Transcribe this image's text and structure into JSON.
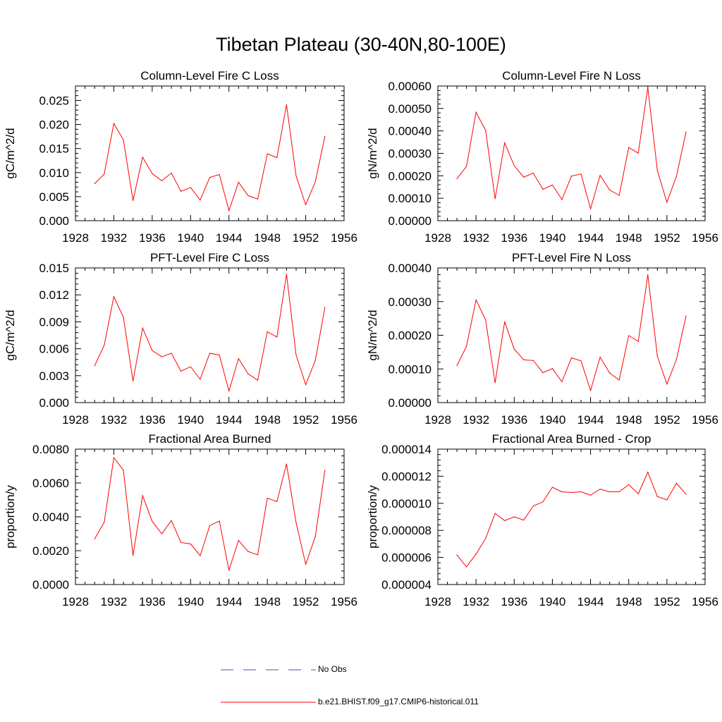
{
  "page_title": "Tibetan Plateau (30-40N,80-100E)",
  "legend": {
    "items": [
      {
        "label": "No Obs",
        "color": "#4f4fb0",
        "style": "dashed"
      },
      {
        "label": "b.e21.BHIST.f09_g17.CMIP6-historical.011",
        "color": "#ff0000",
        "style": "solid"
      }
    ]
  },
  "chart_data": [
    {
      "type": "line",
      "title": "Column-Level Fire C Loss",
      "ylabel": "gC/m^2/d",
      "xlabel": "",
      "xlim": [
        1928,
        1956
      ],
      "xticks": [
        1928,
        1932,
        1936,
        1940,
        1944,
        1948,
        1952,
        1956
      ],
      "ylim": [
        0,
        0.028
      ],
      "yticks": [
        "0.000",
        "0.005",
        "0.010",
        "0.015",
        "0.020",
        "0.025"
      ],
      "x": [
        1930,
        1931,
        1932,
        1933,
        1934,
        1935,
        1936,
        1937,
        1938,
        1939,
        1940,
        1941,
        1942,
        1943,
        1944,
        1945,
        1946,
        1947,
        1948,
        1949,
        1950,
        1951,
        1952,
        1953,
        1954
      ],
      "series": [
        {
          "name": "b.e21.BHIST.f09_g17.CMIP6-historical.011",
          "color": "#ff0000",
          "values": [
            0.0077,
            0.0097,
            0.0202,
            0.0168,
            0.0042,
            0.0132,
            0.0098,
            0.0083,
            0.0099,
            0.0061,
            0.0069,
            0.0043,
            0.009,
            0.0096,
            0.0021,
            0.008,
            0.0052,
            0.0045,
            0.0139,
            0.0131,
            0.0241,
            0.0093,
            0.0033,
            0.0081,
            0.0175
          ]
        }
      ]
    },
    {
      "type": "line",
      "title": "Column-Level Fire N Loss",
      "ylabel": "gN/m^2/d",
      "xlabel": "",
      "xlim": [
        1928,
        1956
      ],
      "xticks": [
        1928,
        1932,
        1936,
        1940,
        1944,
        1948,
        1952,
        1956
      ],
      "ylim": [
        0,
        0.0006
      ],
      "yticks": [
        "0.00000",
        "0.00010",
        "0.00020",
        "0.00030",
        "0.00040",
        "0.00050",
        "0.00060"
      ],
      "x": [
        1930,
        1931,
        1932,
        1933,
        1934,
        1935,
        1936,
        1937,
        1938,
        1939,
        1940,
        1941,
        1942,
        1943,
        1944,
        1945,
        1946,
        1947,
        1948,
        1949,
        1950,
        1951,
        1952,
        1953,
        1954
      ],
      "series": [
        {
          "name": "b.e21.BHIST.f09_g17.CMIP6-historical.011",
          "color": "#ff0000",
          "values": [
            0.000187,
            0.000242,
            0.000483,
            0.000403,
            9.8e-05,
            0.000347,
            0.000245,
            0.000194,
            0.000212,
            0.00014,
            0.000159,
            9.4e-05,
            0.000199,
            0.000208,
            5.3e-05,
            0.000202,
            0.000137,
            0.000113,
            0.000326,
            0.000301,
            0.000594,
            0.000223,
            8.2e-05,
            0.000198,
            0.000395
          ]
        }
      ]
    },
    {
      "type": "line",
      "title": "PFT-Level Fire C Loss",
      "ylabel": "gC/m^2/d",
      "xlabel": "",
      "xlim": [
        1928,
        1956
      ],
      "xticks": [
        1928,
        1932,
        1936,
        1940,
        1944,
        1948,
        1952,
        1956
      ],
      "ylim": [
        0,
        0.015
      ],
      "yticks": [
        "0.000",
        "0.003",
        "0.006",
        "0.009",
        "0.012",
        "0.015"
      ],
      "x": [
        1930,
        1931,
        1932,
        1933,
        1934,
        1935,
        1936,
        1937,
        1938,
        1939,
        1940,
        1941,
        1942,
        1943,
        1944,
        1945,
        1946,
        1947,
        1948,
        1949,
        1950,
        1951,
        1952,
        1953,
        1954
      ],
      "series": [
        {
          "name": "b.e21.BHIST.f09_g17.CMIP6-historical.011",
          "color": "#ff0000",
          "values": [
            0.0041,
            0.0064,
            0.0118,
            0.0095,
            0.0024,
            0.0083,
            0.0058,
            0.0051,
            0.0055,
            0.0035,
            0.004,
            0.0026,
            0.0055,
            0.0053,
            0.0013,
            0.0049,
            0.0032,
            0.0025,
            0.0079,
            0.0073,
            0.0143,
            0.0053,
            0.002,
            0.0047,
            0.0106
          ]
        }
      ]
    },
    {
      "type": "line",
      "title": "PFT-Level Fire N Loss",
      "ylabel": "gN/m^2/d",
      "xlabel": "",
      "xlim": [
        1928,
        1956
      ],
      "xticks": [
        1928,
        1932,
        1936,
        1940,
        1944,
        1948,
        1952,
        1956
      ],
      "ylim": [
        0,
        0.0004
      ],
      "yticks": [
        "0.00000",
        "0.00010",
        "0.00020",
        "0.00030",
        "0.00040"
      ],
      "x": [
        1930,
        1931,
        1932,
        1933,
        1934,
        1935,
        1936,
        1937,
        1938,
        1939,
        1940,
        1941,
        1942,
        1943,
        1944,
        1945,
        1946,
        1947,
        1948,
        1949,
        1950,
        1951,
        1952,
        1953,
        1954
      ],
      "series": [
        {
          "name": "b.e21.BHIST.f09_g17.CMIP6-historical.011",
          "color": "#ff0000",
          "values": [
            0.00011,
            0.000167,
            0.000305,
            0.000246,
            5.9e-05,
            0.00024,
            0.000159,
            0.000127,
            0.000125,
            8.9e-05,
            0.000101,
            6.2e-05,
            0.000133,
            0.000124,
            3.6e-05,
            0.000135,
            8.8e-05,
            6.7e-05,
            0.000199,
            0.000182,
            0.00038,
            0.000138,
            5.5e-05,
            0.000128,
            0.000257
          ]
        }
      ]
    },
    {
      "type": "line",
      "title": "Fractional Area Burned",
      "ylabel": "proportion/y",
      "xlabel": "",
      "xlim": [
        1928,
        1956
      ],
      "xticks": [
        1928,
        1932,
        1936,
        1940,
        1944,
        1948,
        1952,
        1956
      ],
      "ylim": [
        0,
        0.008
      ],
      "yticks": [
        "0.0000",
        "0.0020",
        "0.0040",
        "0.0060",
        "0.0080"
      ],
      "x": [
        1930,
        1931,
        1932,
        1933,
        1934,
        1935,
        1936,
        1937,
        1938,
        1939,
        1940,
        1941,
        1942,
        1943,
        1944,
        1945,
        1946,
        1947,
        1948,
        1949,
        1950,
        1951,
        1952,
        1953,
        1954
      ],
      "series": [
        {
          "name": "b.e21.BHIST.f09_g17.CMIP6-historical.011",
          "color": "#ff0000",
          "values": [
            0.0027,
            0.00368,
            0.0075,
            0.00675,
            0.00172,
            0.00525,
            0.00373,
            0.003,
            0.00378,
            0.00248,
            0.0024,
            0.0017,
            0.00348,
            0.00375,
            0.00085,
            0.0026,
            0.00195,
            0.00175,
            0.0051,
            0.0049,
            0.00712,
            0.00365,
            0.0012,
            0.00283,
            0.00675
          ]
        }
      ]
    },
    {
      "type": "line",
      "title": "Fractional Area Burned - Crop",
      "ylabel": "proportion/y",
      "xlabel": "",
      "xlim": [
        1928,
        1956
      ],
      "xticks": [
        1928,
        1932,
        1936,
        1940,
        1944,
        1948,
        1952,
        1956
      ],
      "ylim": [
        4e-06,
        1.4e-05
      ],
      "yticks": [
        "0.000004",
        "0.000006",
        "0.000008",
        "0.000010",
        "0.000012",
        "0.000014"
      ],
      "x": [
        1930,
        1931,
        1932,
        1933,
        1934,
        1935,
        1936,
        1937,
        1938,
        1939,
        1940,
        1941,
        1942,
        1943,
        1944,
        1945,
        1946,
        1947,
        1948,
        1949,
        1950,
        1951,
        1952,
        1953,
        1954
      ],
      "series": [
        {
          "name": "b.e21.BHIST.f09_g17.CMIP6-historical.011",
          "color": "#ff0000",
          "values": [
            6.18e-06,
            5.3e-06,
            6.25e-06,
            7.4e-06,
            9.25e-06,
            8.72e-06,
            9e-06,
            8.76e-06,
            9.8e-06,
            1.01e-05,
            1.118e-05,
            1.085e-05,
            1.08e-05,
            1.085e-05,
            1.06e-05,
            1.105e-05,
            1.085e-05,
            1.085e-05,
            1.138e-05,
            1.07e-05,
            1.23e-05,
            1.05e-05,
            1.025e-05,
            1.148e-05,
            1.068e-05
          ]
        }
      ]
    }
  ]
}
